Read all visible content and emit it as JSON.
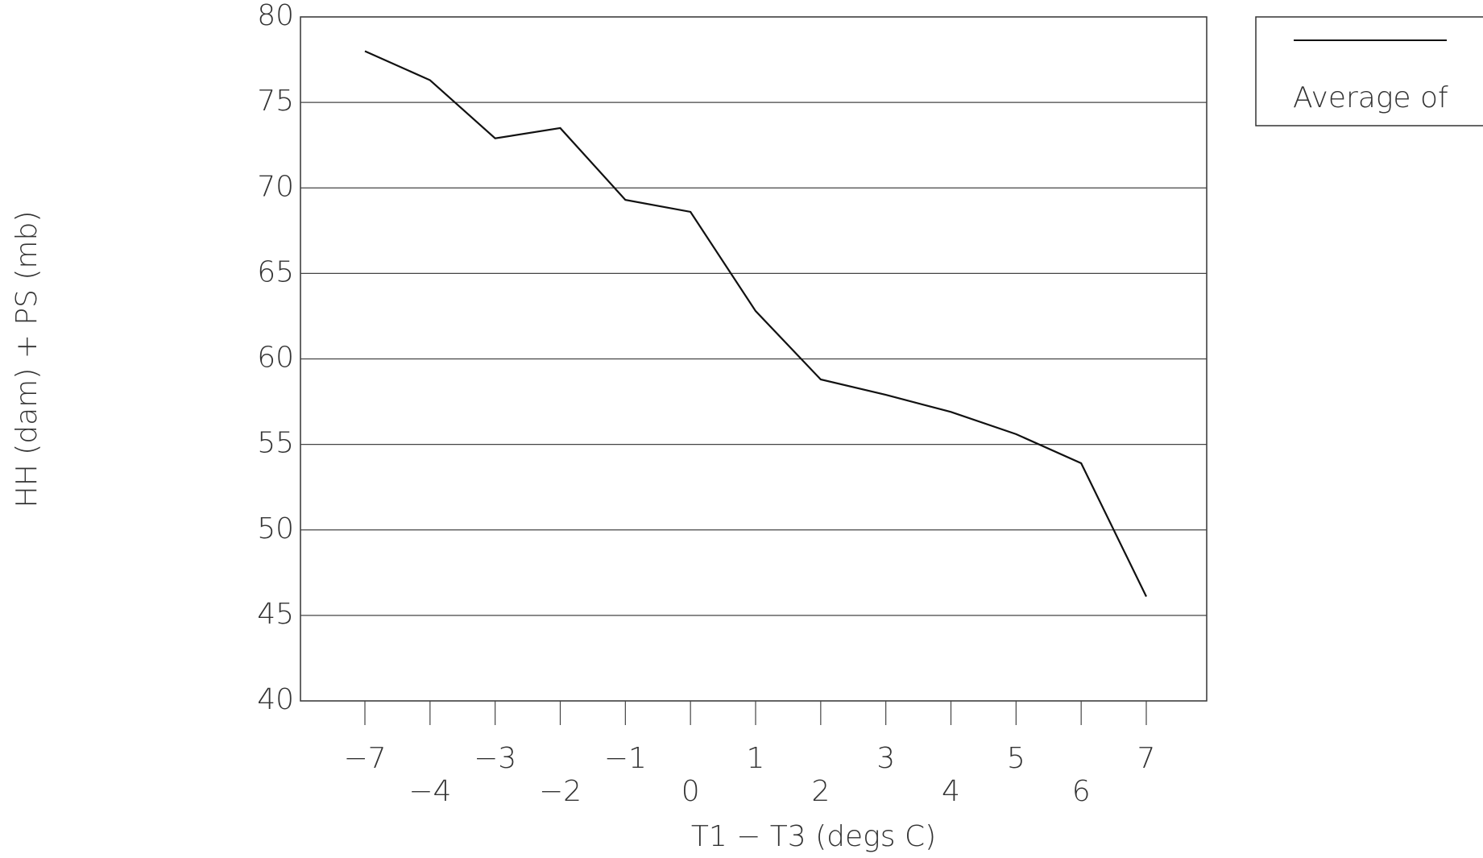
{
  "chart_data": {
    "type": "line",
    "x_label": "T1 − T3 (degs C)",
    "y_label": "HH (dam) + PS (mb)",
    "categories": [
      "−7",
      "−4",
      "−3",
      "−2",
      "−1",
      "0",
      "1",
      "2",
      "3",
      "4",
      "5",
      "6",
      "7"
    ],
    "series": [
      {
        "name": "Average of",
        "color": "#111111",
        "values": [
          78.0,
          76.3,
          72.9,
          73.5,
          69.3,
          68.6,
          62.8,
          58.8,
          57.9,
          56.9,
          55.6,
          53.9,
          46.1
        ]
      }
    ],
    "ylim": [
      40,
      80
    ],
    "yticks": [
      40,
      45,
      50,
      55,
      60,
      65,
      70,
      75,
      80
    ],
    "grid": true,
    "legend": "top-right"
  }
}
